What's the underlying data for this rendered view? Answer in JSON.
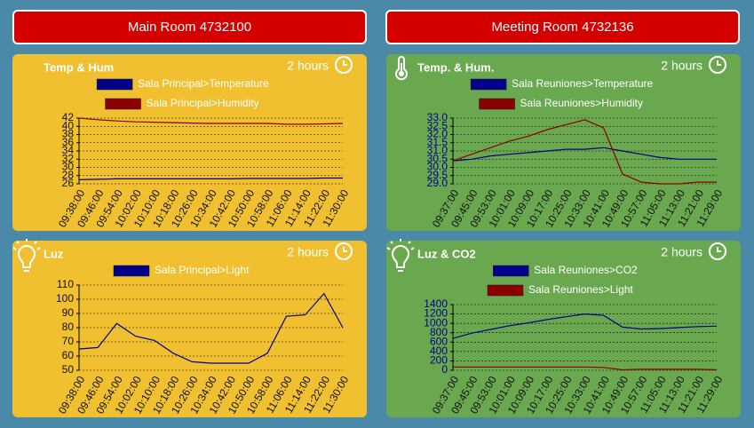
{
  "rooms": [
    {
      "title": "Main Room 4732100",
      "widgets": [
        {
          "title": "Temp & Hum",
          "period": "2 hours",
          "chart": {
            "type": "line",
            "x": [
              "09:38:00",
              "09:46:00",
              "09:54:00",
              "10:02:00",
              "10:10:00",
              "10:18:00",
              "10:26:00",
              "10:34:00",
              "10:42:00",
              "10:50:00",
              "10:58:00",
              "11:06:00",
              "11:14:00",
              "11:22:00",
              "11:30:00"
            ],
            "series": [
              {
                "name": "Sala Principal>Temperature",
                "color": "#00008b",
                "values": [
                  27.0,
                  27.1,
                  27.2,
                  27.2,
                  27.2,
                  27.2,
                  27.2,
                  27.2,
                  27.2,
                  27.3,
                  27.3,
                  27.3,
                  27.3,
                  27.4,
                  27.4
                ]
              },
              {
                "name": "Sala Principal>Humidity",
                "color": "#8b0000",
                "values": [
                  42.0,
                  41.6,
                  41.3,
                  41.1,
                  41.0,
                  40.9,
                  40.8,
                  40.7,
                  40.7,
                  40.7,
                  40.7,
                  40.5,
                  40.5,
                  40.6,
                  40.7
                ]
              }
            ],
            "ylim": [
              26,
              42
            ],
            "yticks": [
              26,
              28,
              30,
              32,
              34,
              36,
              38,
              40,
              42
            ],
            "grid": true
          }
        },
        {
          "title": "Luz",
          "period": "2 hours",
          "chart": {
            "type": "line",
            "x": [
              "09:38:00",
              "09:46:00",
              "09:54:00",
              "10:02:00",
              "10:10:00",
              "10:18:00",
              "10:26:00",
              "10:34:00",
              "10:42:00",
              "10:50:00",
              "10:58:00",
              "11:06:00",
              "11:14:00",
              "11:22:00",
              "11:30:00"
            ],
            "series": [
              {
                "name": "Sala Principal>Light",
                "color": "#00008b",
                "values": [
                  65,
                  66,
                  83,
                  74,
                  71,
                  62,
                  56,
                  55,
                  55,
                  55,
                  62,
                  88,
                  89,
                  104,
                  80
                ]
              }
            ],
            "ylim": [
              50,
              110
            ],
            "yticks": [
              50,
              60,
              70,
              80,
              90,
              100,
              110
            ],
            "grid": true
          }
        }
      ]
    },
    {
      "title": "Meeting Room 4732136",
      "widgets": [
        {
          "title": "Temp. & Hum.",
          "period": "2 hours",
          "chart": {
            "type": "line",
            "x": [
              "09:37:00",
              "09:45:00",
              "09:53:00",
              "10:01:00",
              "10:09:00",
              "10:17:00",
              "10:25:00",
              "10:33:00",
              "10:41:00",
              "10:49:00",
              "10:57:00",
              "11:05:00",
              "11:13:00",
              "11:21:00",
              "11:29:00"
            ],
            "series": [
              {
                "name": "Sala Reuniones>Temperature",
                "color": "#00008b",
                "values": [
                  30.4,
                  30.5,
                  30.7,
                  30.8,
                  30.9,
                  31.0,
                  31.1,
                  31.1,
                  31.2,
                  31.0,
                  30.8,
                  30.6,
                  30.5,
                  30.5,
                  30.5
                ]
              },
              {
                "name": "Sala Reuniones>Humidity",
                "color": "#8b0000",
                "values": [
                  30.4,
                  30.8,
                  31.2,
                  31.6,
                  31.9,
                  32.3,
                  32.6,
                  32.9,
                  32.4,
                  29.6,
                  29.1,
                  29.0,
                  29.0,
                  29.1,
                  29.1
                ]
              }
            ],
            "ylim": [
              29,
              33
            ],
            "yticks": [
              {
                "value": 29,
                "label": "29.0"
              },
              29.5,
              {
                "value": 30,
                "label": "30.0"
              },
              30.5,
              {
                "value": 31,
                "label": "31.0"
              },
              31.5,
              {
                "value": 32,
                "label": "32.0"
              },
              32.5,
              {
                "value": 33,
                "label": "33.0"
              }
            ],
            "grid": true
          }
        },
        {
          "title": "Luz & CO2",
          "period": "2 hours",
          "chart": {
            "type": "line",
            "x": [
              "09:37:00",
              "09:45:00",
              "09:53:00",
              "10:01:00",
              "10:09:00",
              "10:17:00",
              "10:25:00",
              "10:33:00",
              "10:41:00",
              "10:49:00",
              "10:57:00",
              "11:05:00",
              "11:13:00",
              "11:21:00",
              "11:29:00"
            ],
            "series": [
              {
                "name": "Sala Reuniones>CO2",
                "color": "#00008b",
                "values": [
                  680,
                  790,
                  870,
                  950,
                  1010,
                  1080,
                  1140,
                  1200,
                  1170,
                  920,
                  880,
                  890,
                  910,
                  930,
                  940
                ]
              },
              {
                "name": "Sala Reuniones>Light",
                "color": "#8b0000",
                "values": [
                  70,
                  70,
                  70,
                  70,
                  70,
                  70,
                  70,
                  70,
                  60,
                  10,
                  20,
                  20,
                  20,
                  20,
                  10
                ]
              }
            ],
            "ylim": [
              0,
              1400
            ],
            "yticks": [
              0,
              200,
              400,
              600,
              800,
              1000,
              1200,
              1400
            ],
            "grid": true
          }
        }
      ]
    }
  ]
}
